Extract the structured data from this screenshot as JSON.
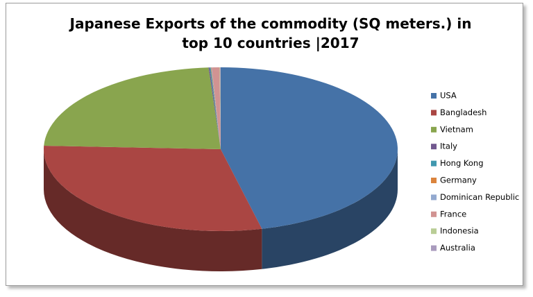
{
  "chart_data": {
    "type": "pie3d",
    "title": "Japanese Exports of the commodity (SQ meters.) in top 10 countries |2017",
    "categories": [
      "USA",
      "Bangladesh",
      "Vietnam",
      "Italy",
      "Hong Kong",
      "Germany",
      "Dominican Republic",
      "France",
      "Indonesia",
      "Australia"
    ],
    "values": [
      46.4,
      29.5,
      23.3,
      0.1,
      0.1,
      0.05,
      0.05,
      0.7,
      0.05,
      0.05
    ],
    "colors": [
      "#4572a7",
      "#aa4643",
      "#89a54e",
      "#71588f",
      "#4198af",
      "#db843d",
      "#93a9cf",
      "#d19392",
      "#b9cd96",
      "#a99bbd"
    ],
    "legend": "right"
  }
}
